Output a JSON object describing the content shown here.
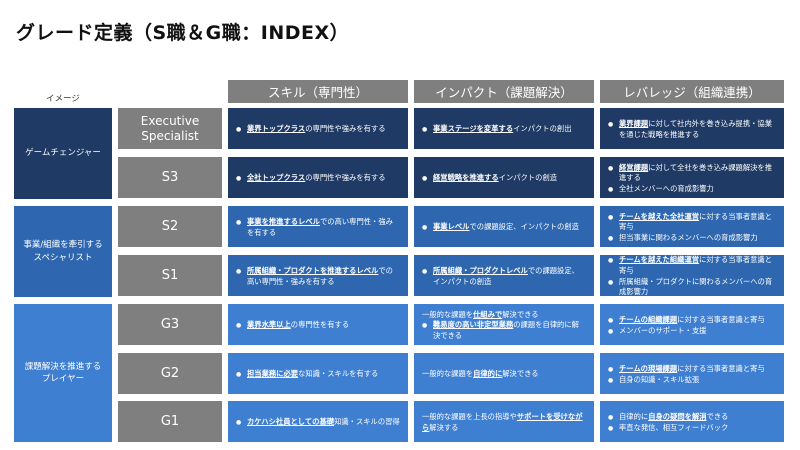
{
  "title": "グレード定義（S職＆G職：INDEX）",
  "image_label": "イメージ",
  "columns": [
    "スキル（専門性）",
    "インパクト（課題解決）",
    "レバレッジ（組織連携）"
  ],
  "categories": [
    "ゲームチェンジャー",
    "事業/組織を牽引する\nスペシャリスト",
    "課題解決を推進する\nプレイヤー"
  ],
  "colors": {
    "dark": "#1f3a64",
    "mid": "#2e67b0",
    "light": "#3f7fd1",
    "grey": "#7f7f7f"
  },
  "rows": [
    {
      "grade": "Executive\nSpecialist",
      "skill": [
        [
          [
            "業界トップクラス",
            true
          ],
          [
            "の専門性や強みを有する",
            false
          ]
        ]
      ],
      "impact": [
        [
          [
            "事業ステージを変革する",
            true
          ],
          [
            "インパクトの創出",
            false
          ]
        ]
      ],
      "leverage": [
        [
          [
            "業界課題",
            true
          ],
          [
            "に対して社内外を巻き込み提携・協業を通じた戦略を推進する",
            false
          ]
        ]
      ]
    },
    {
      "grade": "S3",
      "skill": [
        [
          [
            "全社トップクラス",
            true
          ],
          [
            "の専門性や強みを有する",
            false
          ]
        ]
      ],
      "impact": [
        [
          [
            "経営戦略を推進する",
            true
          ],
          [
            "インパクトの創造",
            false
          ]
        ]
      ],
      "leverage": [
        [
          [
            "経営課題",
            true
          ],
          [
            "に対して全社を巻き込み課題解決を推進する",
            false
          ]
        ],
        [
          [
            "全社メンバーへの育成影響力",
            false
          ]
        ]
      ]
    },
    {
      "grade": "S2",
      "skill": [
        [
          [
            "事業を推進するレベル",
            true
          ],
          [
            "での高い専門性・強みを有する",
            false
          ]
        ]
      ],
      "impact": [
        [
          [
            "事業レベル",
            true
          ],
          [
            "での課題設定、インパクトの創造",
            false
          ]
        ]
      ],
      "leverage": [
        [
          [
            "チームを越えた全社運営",
            true
          ],
          [
            "に対する当事者意識と寄与",
            false
          ]
        ],
        [
          [
            "担当事業に関わるメンバーへの育成影響力",
            false
          ]
        ]
      ]
    },
    {
      "grade": "S1",
      "skill": [
        [
          [
            "所属組織・プロダクトを推進するレベル",
            true
          ],
          [
            "での高い専門性・強みを有する",
            false
          ]
        ]
      ],
      "impact": [
        [
          [
            "所属組織・プロダクトレベル",
            true
          ],
          [
            "での課題設定、インパクトの創造",
            false
          ]
        ]
      ],
      "leverage": [
        [
          [
            "チームを越えた組織運営",
            true
          ],
          [
            "に対する当事者意識と寄与",
            false
          ]
        ],
        [
          [
            "所属組織・プロダクトに関わるメンバーへの育成影響力",
            false
          ]
        ]
      ]
    },
    {
      "grade": "G3",
      "skill": [
        [
          [
            "業界水準以上",
            true
          ],
          [
            "の専門性を有する",
            false
          ]
        ]
      ],
      "impact": [
        [
          [
            "一般的な課題を",
            false
          ],
          [
            "仕組みで",
            true
          ],
          [
            "解決できる",
            false
          ]
        ],
        [
          [
            "難易度の高い非定型業務",
            true
          ],
          [
            "の課題を自律的に解決できる",
            false
          ]
        ]
      ],
      "leverage": [
        [
          [
            "チームの組織課題",
            true
          ],
          [
            "に対する当事者意識と寄与",
            false
          ]
        ],
        [
          [
            "メンバーのサポート・支援",
            false
          ]
        ]
      ]
    },
    {
      "grade": "G2",
      "skill": [
        [
          [
            "担当業務に必要",
            true
          ],
          [
            "な知識・スキルを有する",
            false
          ]
        ]
      ],
      "impact": [
        [
          [
            "一般的な課題を",
            false
          ],
          [
            "自律的に",
            true
          ],
          [
            "解決できる",
            false
          ]
        ]
      ],
      "leverage": [
        [
          [
            "チームの現場課題",
            true
          ],
          [
            "に対する当事者意識と寄与",
            false
          ]
        ],
        [
          [
            "自身の知識・スキル拡張",
            false
          ]
        ]
      ]
    },
    {
      "grade": "G1",
      "skill": [
        [
          [
            "カケハシ社員としての基礎",
            true
          ],
          [
            "知識・スキルの習得",
            false
          ]
        ]
      ],
      "impact": [
        [
          [
            "一般的な課題を上長の指導や",
            false
          ],
          [
            "サポートを受けながら",
            true
          ],
          [
            "解決する",
            false
          ]
        ]
      ],
      "leverage": [
        [
          [
            "自律的に",
            false
          ],
          [
            "自身の疑問を解消",
            true
          ],
          [
            "できる",
            false
          ]
        ],
        [
          [
            "率直な発信、相互フィードバック",
            false
          ]
        ]
      ]
    }
  ]
}
